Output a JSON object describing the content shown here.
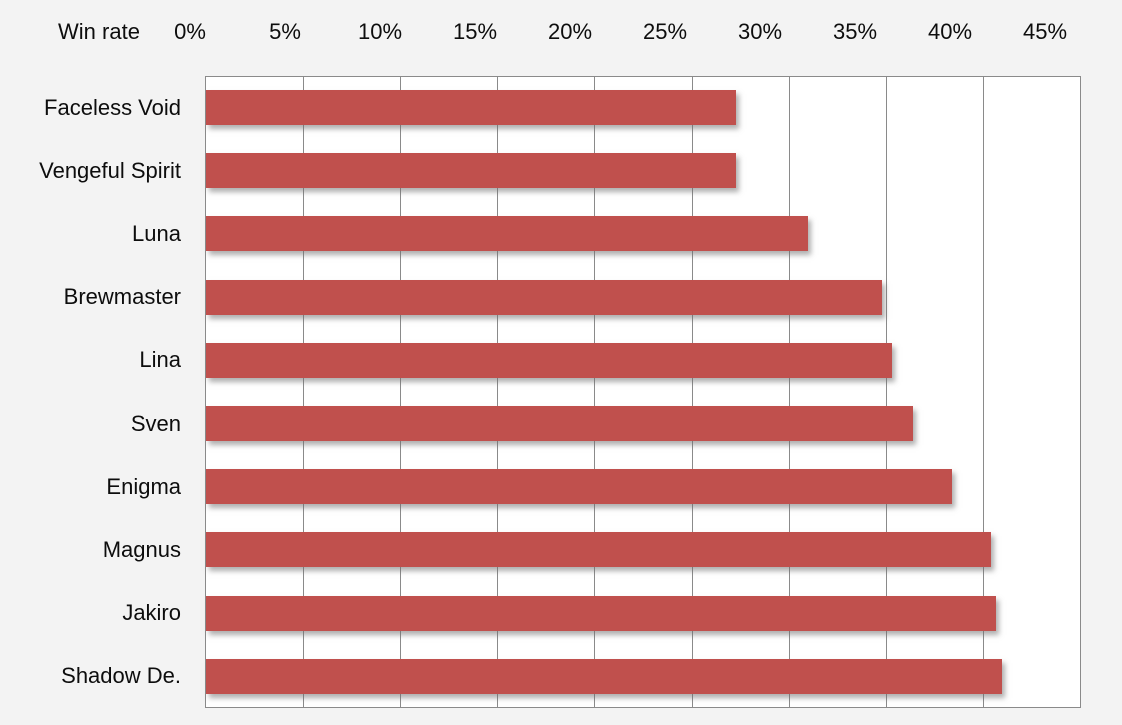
{
  "chart_data": {
    "type": "bar",
    "orientation": "horizontal",
    "title": "Win rate",
    "categories": [
      "Faceless Void",
      "Vengeful Spirit",
      "Luna",
      "Brewmaster",
      "Lina",
      "Sven",
      "Enigma",
      "Magnus",
      "Jakiro",
      "Shadow De."
    ],
    "values": [
      27.3,
      27.3,
      31.0,
      34.8,
      35.3,
      36.4,
      38.4,
      40.4,
      40.7,
      41.0
    ],
    "x_ticks": [
      "0%",
      "5%",
      "10%",
      "15%",
      "20%",
      "25%",
      "30%",
      "35%",
      "40%",
      "45%"
    ],
    "xlim": [
      0,
      45
    ],
    "xlabel": "Win rate",
    "ylabel": "",
    "grid": "vertical-only",
    "legend": "none",
    "colors": {
      "bar": "#c0504d",
      "gridline": "#8a8a8a",
      "plot_background": "#ffffff",
      "page_background": "#f3f3f3",
      "text": "#0d0d0d"
    }
  }
}
